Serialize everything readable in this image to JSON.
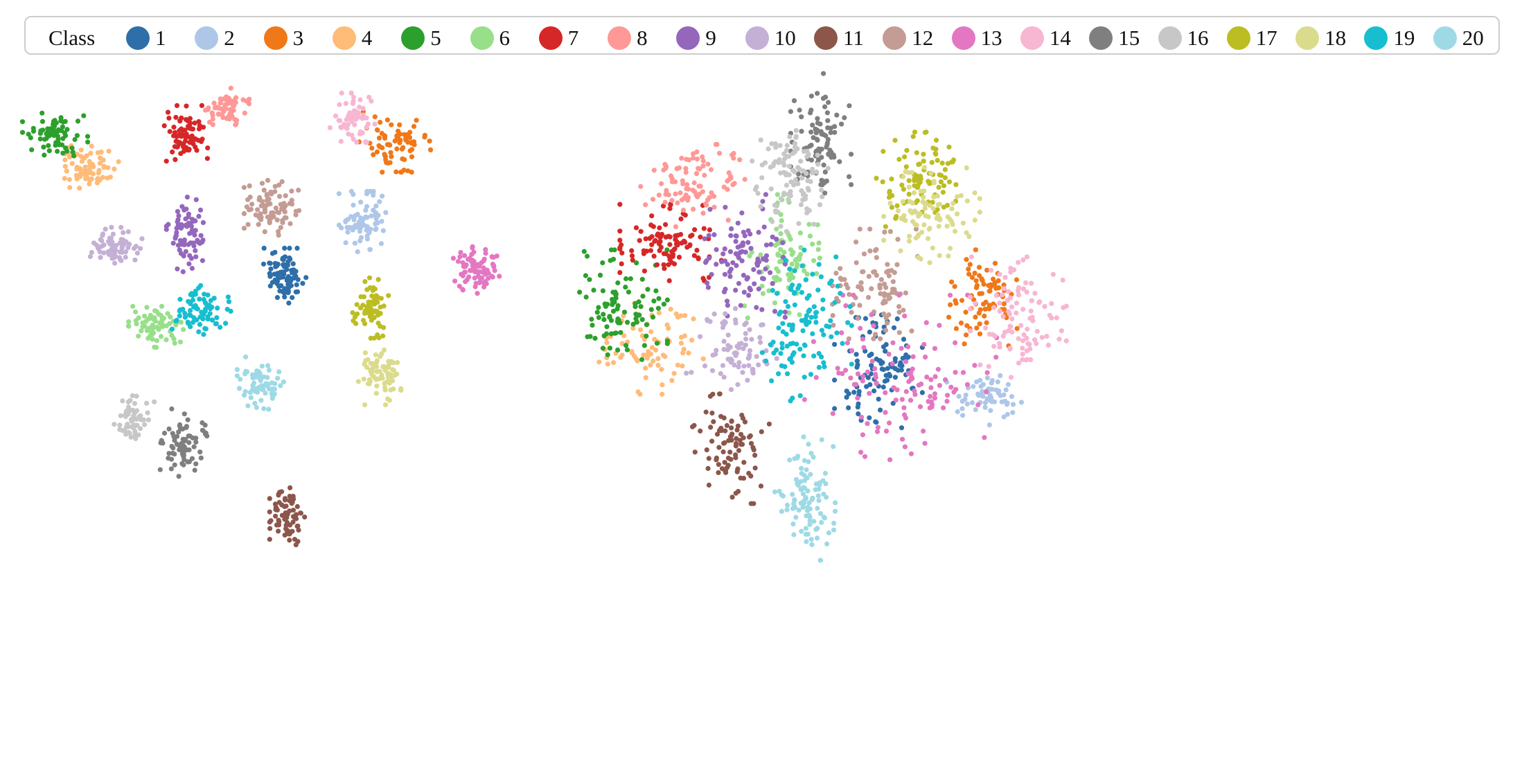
{
  "legend": {
    "title": "Class",
    "items": [
      {
        "label": "1",
        "color": "#2e6faa"
      },
      {
        "label": "2",
        "color": "#aec7e8"
      },
      {
        "label": "3",
        "color": "#f07818"
      },
      {
        "label": "4",
        "color": "#ffbb78"
      },
      {
        "label": "5",
        "color": "#2ca02c"
      },
      {
        "label": "6",
        "color": "#98df8a"
      },
      {
        "label": "7",
        "color": "#d62728"
      },
      {
        "label": "8",
        "color": "#ff9896"
      },
      {
        "label": "9",
        "color": "#9467bd"
      },
      {
        "label": "10",
        "color": "#c5b0d5"
      },
      {
        "label": "11",
        "color": "#8c564b"
      },
      {
        "label": "12",
        "color": "#c49c94"
      },
      {
        "label": "13",
        "color": "#e377c2"
      },
      {
        "label": "14",
        "color": "#f7b6d2"
      },
      {
        "label": "15",
        "color": "#7f7f7f"
      },
      {
        "label": "16",
        "color": "#c7c7c7"
      },
      {
        "label": "17",
        "color": "#bcbd22"
      },
      {
        "label": "18",
        "color": "#dbdb8d"
      },
      {
        "label": "19",
        "color": "#17becf"
      },
      {
        "label": "20",
        "color": "#9edae5"
      }
    ]
  },
  "chart_data": [
    {
      "type": "scatter",
      "title": "",
      "xlabel": "",
      "ylabel": "",
      "axes": "hidden",
      "grid": false,
      "legend_position": "top",
      "clusters": [
        {
          "class": "1",
          "center": [
            410,
            398
          ],
          "spread": [
            16,
            20
          ],
          "n": 90
        },
        {
          "class": "2",
          "center": [
            525,
            320
          ],
          "spread": [
            18,
            22
          ],
          "n": 80
        },
        {
          "class": "3",
          "center": [
            570,
            205
          ],
          "spread": [
            26,
            22
          ],
          "n": 75
        },
        {
          "class": "4",
          "center": [
            128,
            240
          ],
          "spread": [
            22,
            16
          ],
          "n": 70
        },
        {
          "class": "5",
          "center": [
            80,
            195
          ],
          "spread": [
            24,
            16
          ],
          "n": 70
        },
        {
          "class": "6",
          "center": [
            225,
            472
          ],
          "spread": [
            20,
            15
          ],
          "n": 70
        },
        {
          "class": "7",
          "center": [
            268,
            196
          ],
          "spread": [
            16,
            22
          ],
          "n": 75
        },
        {
          "class": "8",
          "center": [
            325,
            155
          ],
          "spread": [
            18,
            14
          ],
          "n": 60
        },
        {
          "class": "9",
          "center": [
            270,
            340
          ],
          "spread": [
            15,
            28
          ],
          "n": 80
        },
        {
          "class": "10",
          "center": [
            170,
            358
          ],
          "spread": [
            20,
            15
          ],
          "n": 70
        },
        {
          "class": "11",
          "center": [
            415,
            748
          ],
          "spread": [
            13,
            22
          ],
          "n": 70
        },
        {
          "class": "12",
          "center": [
            392,
            300
          ],
          "spread": [
            20,
            20
          ],
          "n": 85
        },
        {
          "class": "13",
          "center": [
            690,
            388
          ],
          "spread": [
            18,
            18
          ],
          "n": 80
        },
        {
          "class": "14",
          "center": [
            512,
            170
          ],
          "spread": [
            18,
            18
          ],
          "n": 60
        },
        {
          "class": "15",
          "center": [
            265,
            640
          ],
          "spread": [
            17,
            25
          ],
          "n": 75
        },
        {
          "class": "16",
          "center": [
            193,
            605
          ],
          "spread": [
            15,
            18
          ],
          "n": 60
        },
        {
          "class": "17",
          "center": [
            533,
            450
          ],
          "spread": [
            14,
            25
          ],
          "n": 70
        },
        {
          "class": "18",
          "center": [
            550,
            545
          ],
          "spread": [
            18,
            20
          ],
          "n": 70
        },
        {
          "class": "19",
          "center": [
            292,
            448
          ],
          "spread": [
            22,
            18
          ],
          "n": 75
        },
        {
          "class": "20",
          "center": [
            378,
            555
          ],
          "spread": [
            18,
            20
          ],
          "n": 75
        }
      ]
    },
    {
      "type": "scatter",
      "title": "",
      "xlabel": "",
      "ylabel": "",
      "axes": "hidden",
      "grid": false,
      "legend_position": "top",
      "clusters": [
        {
          "class": "1",
          "center": [
            1268,
            535
          ],
          "spread": [
            32,
            50
          ],
          "n": 100
        },
        {
          "class": "2",
          "center": [
            1420,
            578
          ],
          "spread": [
            28,
            18
          ],
          "n": 60
        },
        {
          "class": "3",
          "center": [
            1420,
            430
          ],
          "spread": [
            28,
            35
          ],
          "n": 80
        },
        {
          "class": "4",
          "center": [
            940,
            500
          ],
          "spread": [
            38,
            35
          ],
          "n": 80
        },
        {
          "class": "5",
          "center": [
            900,
            440
          ],
          "spread": [
            32,
            40
          ],
          "n": 100
        },
        {
          "class": "6",
          "center": [
            1130,
            370
          ],
          "spread": [
            28,
            45
          ],
          "n": 90
        },
        {
          "class": "7",
          "center": [
            970,
            350
          ],
          "spread": [
            38,
            28
          ],
          "n": 100
        },
        {
          "class": "8",
          "center": [
            1000,
            268
          ],
          "spread": [
            38,
            30
          ],
          "n": 90
        },
        {
          "class": "9",
          "center": [
            1070,
            370
          ],
          "spread": [
            32,
            45
          ],
          "n": 100
        },
        {
          "class": "10",
          "center": [
            1060,
            505
          ],
          "spread": [
            35,
            30
          ],
          "n": 80
        },
        {
          "class": "11",
          "center": [
            1055,
            648
          ],
          "spread": [
            28,
            40
          ],
          "n": 90
        },
        {
          "class": "12",
          "center": [
            1265,
            410
          ],
          "spread": [
            32,
            40
          ],
          "n": 90
        },
        {
          "class": "13",
          "center": [
            1300,
            545
          ],
          "spread": [
            70,
            60
          ],
          "n": 120
        },
        {
          "class": "14",
          "center": [
            1470,
            460
          ],
          "spread": [
            35,
            45
          ],
          "n": 100
        },
        {
          "class": "15",
          "center": [
            1185,
            190
          ],
          "spread": [
            22,
            45
          ],
          "n": 90
        },
        {
          "class": "16",
          "center": [
            1140,
            255
          ],
          "spread": [
            28,
            40
          ],
          "n": 100
        },
        {
          "class": "17",
          "center": [
            1325,
            260
          ],
          "spread": [
            32,
            35
          ],
          "n": 90
        },
        {
          "class": "18",
          "center": [
            1345,
            310
          ],
          "spread": [
            35,
            35
          ],
          "n": 90
        },
        {
          "class": "19",
          "center": [
            1160,
            470
          ],
          "spread": [
            35,
            55
          ],
          "n": 110
        },
        {
          "class": "20",
          "center": [
            1162,
            720
          ],
          "spread": [
            22,
            45
          ],
          "n": 100
        }
      ]
    }
  ]
}
